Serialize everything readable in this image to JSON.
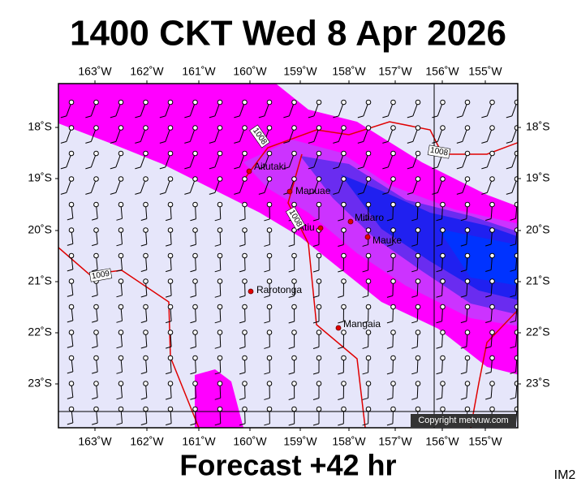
{
  "header": {
    "title": "1400 CKT Wed 8 Apr 2026"
  },
  "map": {
    "lon_labels": [
      "163˚W",
      "162˚W",
      "161˚W",
      "160˚W",
      "159˚W",
      "158˚W",
      "157˚W",
      "156˚W",
      "155˚W"
    ],
    "lat_labels": [
      "18˚S",
      "19˚S",
      "20˚S",
      "21˚S",
      "22˚S",
      "23˚S"
    ],
    "places": [
      "Aitutaki",
      "Manuae",
      "Atiu",
      "Mitiaro",
      "Mauke",
      "Rarotonga",
      "Mangaia"
    ],
    "isobar_labels": [
      "1008",
      "1008",
      "1008",
      "1009"
    ],
    "copyright": "Copyright metvuw.com"
  },
  "footer": {
    "forecast": "Forecast +42 hr",
    "code": "IM2"
  }
}
